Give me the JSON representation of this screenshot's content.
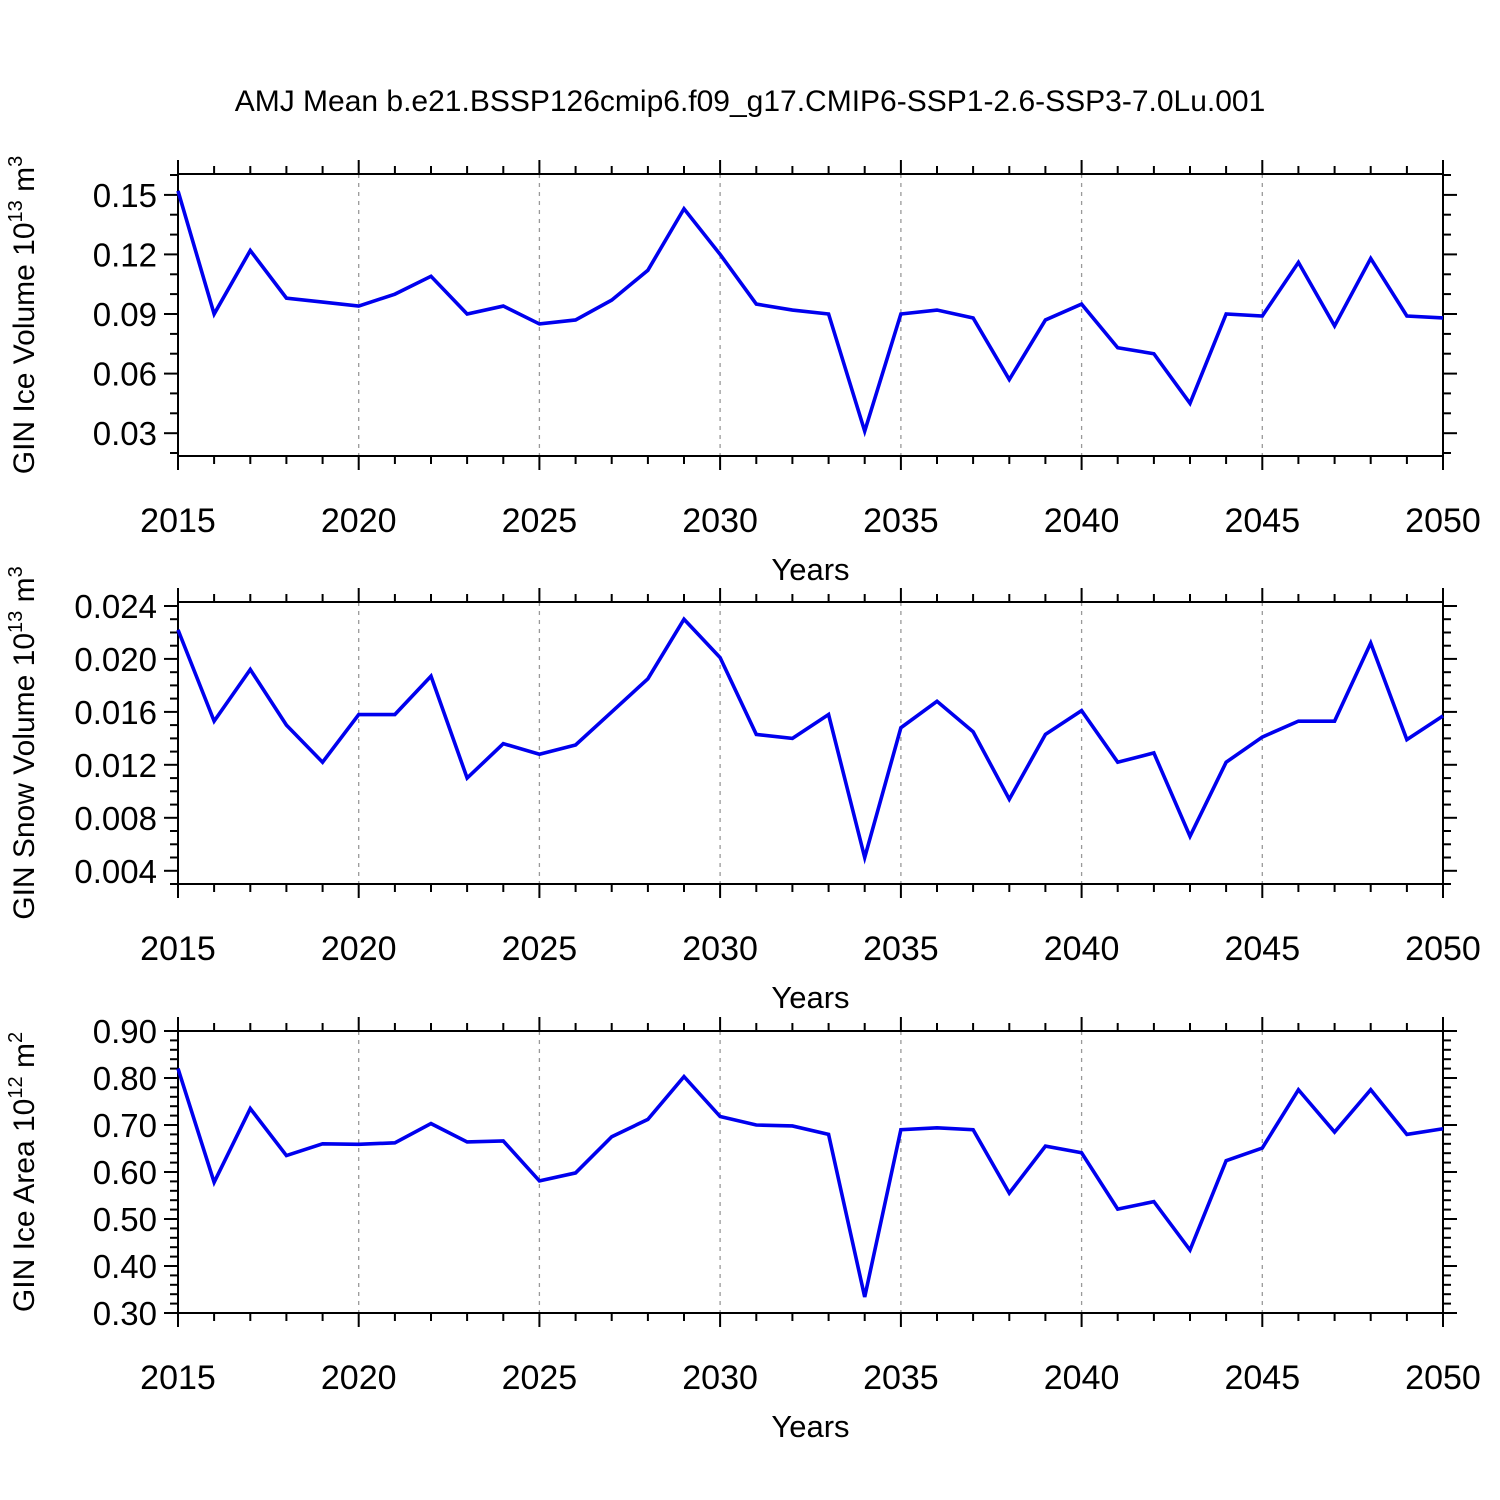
{
  "title": "AMJ Mean b.e21.BSSP126cmip6.f09_g17.CMIP6-SSP1-2.6-SSP3-7.0Lu.001",
  "colors": {
    "line": "#0000EE",
    "axis": "#000000",
    "grid": "#999999",
    "background": "#FFFFFF"
  },
  "chart_data": [
    {
      "id": "gin-ice-volume",
      "type": "line",
      "xlabel": "Years",
      "ylabel": "GIN Ice Volume 10^13 m^3",
      "ylabel_parts": [
        {
          "t": "GIN Ice Volume 10"
        },
        {
          "t": "13",
          "sup": true
        },
        {
          "t": " m"
        },
        {
          "t": "3",
          "sup": true
        }
      ],
      "x": [
        2015,
        2016,
        2017,
        2018,
        2019,
        2020,
        2021,
        2022,
        2023,
        2024,
        2025,
        2026,
        2027,
        2028,
        2029,
        2030,
        2031,
        2032,
        2033,
        2034,
        2035,
        2036,
        2037,
        2038,
        2039,
        2040,
        2041,
        2042,
        2043,
        2044,
        2045,
        2046,
        2047,
        2048,
        2049,
        2050
      ],
      "series": [
        {
          "name": "GIN Ice Volume (10^13 m^3)",
          "values": [
            0.152,
            0.09,
            0.122,
            0.098,
            0.096,
            0.094,
            0.1,
            0.109,
            0.09,
            0.094,
            0.085,
            0.087,
            0.097,
            0.112,
            0.143,
            0.12,
            0.095,
            0.092,
            0.09,
            0.031,
            0.09,
            0.092,
            0.088,
            0.057,
            0.087,
            0.095,
            0.073,
            0.07,
            0.045,
            0.09,
            0.089,
            0.116,
            0.084,
            0.118,
            0.089,
            0.088
          ]
        }
      ],
      "xlim": [
        2015,
        2050
      ],
      "ylim": [
        0.0185,
        0.1605
      ],
      "xticks": [
        2015,
        2020,
        2025,
        2030,
        2035,
        2040,
        2045,
        2050
      ],
      "xtick_labels": [
        "2015",
        "2020",
        "2025",
        "2030",
        "2035",
        "2040",
        "2045",
        "2050"
      ],
      "yticks": [
        0.03,
        0.06,
        0.09,
        0.12,
        0.15
      ],
      "ytick_labels": [
        "0.03",
        "0.06",
        "0.09",
        "0.12",
        "0.15"
      ],
      "y_minor_step": 0.01,
      "grid_x": [
        2020,
        2025,
        2030,
        2035,
        2040,
        2045
      ],
      "grid_style": "vertical-dashed",
      "legend": "none"
    },
    {
      "id": "gin-snow-volume",
      "type": "line",
      "xlabel": "Years",
      "ylabel": "GIN Snow Volume 10^13 m^3",
      "ylabel_parts": [
        {
          "t": "GIN Snow Volume 10"
        },
        {
          "t": "13",
          "sup": true
        },
        {
          "t": " m"
        },
        {
          "t": "3",
          "sup": true
        }
      ],
      "x": [
        2015,
        2016,
        2017,
        2018,
        2019,
        2020,
        2021,
        2022,
        2023,
        2024,
        2025,
        2026,
        2027,
        2028,
        2029,
        2030,
        2031,
        2032,
        2033,
        2034,
        2035,
        2036,
        2037,
        2038,
        2039,
        2040,
        2041,
        2042,
        2043,
        2044,
        2045,
        2046,
        2047,
        2048,
        2049,
        2050
      ],
      "series": [
        {
          "name": "GIN Snow Volume (10^13 m^3)",
          "values": [
            0.0222,
            0.0153,
            0.0192,
            0.015,
            0.0122,
            0.0158,
            0.0158,
            0.0187,
            0.011,
            0.0136,
            0.0128,
            0.0135,
            0.016,
            0.0185,
            0.023,
            0.0201,
            0.0143,
            0.014,
            0.0158,
            0.005,
            0.0148,
            0.0168,
            0.0145,
            0.0094,
            0.0143,
            0.0161,
            0.0122,
            0.0129,
            0.0066,
            0.0122,
            0.0141,
            0.0153,
            0.0153,
            0.0212,
            0.0139,
            0.0157
          ]
        }
      ],
      "xlim": [
        2015,
        2050
      ],
      "ylim": [
        0.003,
        0.0243
      ],
      "xticks": [
        2015,
        2020,
        2025,
        2030,
        2035,
        2040,
        2045,
        2050
      ],
      "xtick_labels": [
        "2015",
        "2020",
        "2025",
        "2030",
        "2035",
        "2040",
        "2045",
        "2050"
      ],
      "yticks": [
        0.004,
        0.008,
        0.012,
        0.016,
        0.02,
        0.024
      ],
      "ytick_labels": [
        "0.004",
        "0.008",
        "0.012",
        "0.016",
        "0.020",
        "0.024"
      ],
      "y_minor_step": 0.001,
      "grid_x": [
        2020,
        2025,
        2030,
        2035,
        2040,
        2045
      ],
      "grid_style": "vertical-dashed",
      "legend": "none"
    },
    {
      "id": "gin-ice-area",
      "type": "line",
      "xlabel": "Years",
      "ylabel": "GIN Ice Area 10^12 m^2",
      "ylabel_parts": [
        {
          "t": "GIN Ice Area 10"
        },
        {
          "t": "12",
          "sup": true
        },
        {
          "t": " m"
        },
        {
          "t": "2",
          "sup": true
        }
      ],
      "x": [
        2015,
        2016,
        2017,
        2018,
        2019,
        2020,
        2021,
        2022,
        2023,
        2024,
        2025,
        2026,
        2027,
        2028,
        2029,
        2030,
        2031,
        2032,
        2033,
        2034,
        2035,
        2036,
        2037,
        2038,
        2039,
        2040,
        2041,
        2042,
        2043,
        2044,
        2045,
        2046,
        2047,
        2048,
        2049,
        2050
      ],
      "series": [
        {
          "name": "GIN Ice Area (10^12 m^2)",
          "values": [
            0.82,
            0.578,
            0.735,
            0.635,
            0.66,
            0.659,
            0.662,
            0.703,
            0.664,
            0.666,
            0.581,
            0.598,
            0.675,
            0.712,
            0.803,
            0.718,
            0.7,
            0.698,
            0.68,
            0.334,
            0.69,
            0.694,
            0.69,
            0.555,
            0.655,
            0.641,
            0.521,
            0.537,
            0.434,
            0.624,
            0.651,
            0.775,
            0.685,
            0.775,
            0.68,
            0.692
          ]
        }
      ],
      "xlim": [
        2015,
        2050
      ],
      "ylim": [
        0.3,
        0.9
      ],
      "xticks": [
        2015,
        2020,
        2025,
        2030,
        2035,
        2040,
        2045,
        2050
      ],
      "xtick_labels": [
        "2015",
        "2020",
        "2025",
        "2030",
        "2035",
        "2040",
        "2045",
        "2050"
      ],
      "yticks": [
        0.3,
        0.4,
        0.5,
        0.6,
        0.7,
        0.8,
        0.9
      ],
      "ytick_labels": [
        "0.30",
        "0.40",
        "0.50",
        "0.60",
        "0.70",
        "0.80",
        "0.90"
      ],
      "y_minor_step": 0.02,
      "grid_x": [
        2020,
        2025,
        2030,
        2035,
        2040,
        2045
      ],
      "grid_style": "vertical-dashed",
      "legend": "none"
    }
  ]
}
